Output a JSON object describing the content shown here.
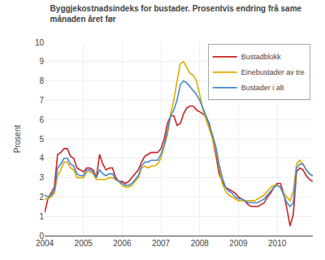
{
  "chart_data": {
    "type": "line",
    "title": "Byggjekostnadsindeks for bustader. Prosentvis endring frå same\nmånaden året før",
    "y_label": "Prosent",
    "x": [
      2004.0,
      2004.0833333333333,
      2004.1666666666667,
      2004.25,
      2004.3333333333333,
      2004.4166666666667,
      2004.5,
      2004.5833333333333,
      2004.6666666666667,
      2004.75,
      2004.8333333333333,
      2004.9166666666667,
      2005.0,
      2005.0833333333333,
      2005.1666666666667,
      2005.25,
      2005.3333333333333,
      2005.4166666666667,
      2005.5,
      2005.5833333333333,
      2005.6666666666667,
      2005.75,
      2005.8333333333333,
      2005.9166666666667,
      2006.0,
      2006.0833333333333,
      2006.1666666666667,
      2006.25,
      2006.3333333333333,
      2006.4166666666667,
      2006.5,
      2006.5833333333333,
      2006.6666666666667,
      2006.75,
      2006.8333333333333,
      2006.9166666666667,
      2007.0,
      2007.0833333333333,
      2007.1666666666667,
      2007.25,
      2007.3333333333333,
      2007.4166666666667,
      2007.5,
      2007.5833333333333,
      2007.6666666666667,
      2007.75,
      2007.8333333333333,
      2007.9166666666667,
      2008.0,
      2008.0833333333333,
      2008.1666666666667,
      2008.25,
      2008.3333333333333,
      2008.4166666666667,
      2008.5,
      2008.5833333333333,
      2008.6666666666667,
      2008.75,
      2008.8333333333333,
      2008.9166666666667,
      2009.0,
      2009.0833333333333,
      2009.1666666666667,
      2009.25,
      2009.3333333333333,
      2009.4166666666667,
      2009.5,
      2009.5833333333333,
      2009.6666666666667,
      2009.75,
      2009.8333333333333,
      2009.9166666666667,
      2010.0,
      2010.0833333333333,
      2010.1666666666667,
      2010.25,
      2010.3333333333333,
      2010.4166666666667,
      2010.5,
      2010.5833333333333,
      2010.6666666666667,
      2010.75,
      2010.8333333333333,
      2010.9166666666667
    ],
    "series": [
      {
        "name": "Bustadblokk",
        "color": "#cc2222",
        "values": [
          1.2,
          1.9,
          2.2,
          2.5,
          4.2,
          4.3,
          4.5,
          4.5,
          4.1,
          4.0,
          3.5,
          3.4,
          3.3,
          3.5,
          3.5,
          3.4,
          3.0,
          4.2,
          3.7,
          3.4,
          3.5,
          3.5,
          3.0,
          2.8,
          2.8,
          2.7,
          2.8,
          3.0,
          3.2,
          3.4,
          3.8,
          4.1,
          4.2,
          4.3,
          4.3,
          4.3,
          4.5,
          5.0,
          5.8,
          6.2,
          6.2,
          5.7,
          5.8,
          6.3,
          6.6,
          6.7,
          6.7,
          6.5,
          6.4,
          6.3,
          6.1,
          5.8,
          5.0,
          4.2,
          3.2,
          2.8,
          2.5,
          2.4,
          2.3,
          2.2,
          2.0,
          1.9,
          1.8,
          1.6,
          1.5,
          1.5,
          1.5,
          1.6,
          1.7,
          2.0,
          2.2,
          2.5,
          2.7,
          2.7,
          2.2,
          1.4,
          0.5,
          1.1,
          3.3,
          3.5,
          3.4,
          3.1,
          2.9,
          2.8
        ]
      },
      {
        "name": "Einebustader av tre",
        "color": "#ddaa00",
        "values": [
          1.9,
          1.9,
          2.0,
          2.2,
          3.1,
          3.4,
          3.8,
          3.8,
          3.5,
          3.4,
          3.0,
          3.0,
          3.0,
          3.3,
          3.3,
          3.2,
          2.9,
          2.9,
          2.9,
          2.9,
          3.0,
          3.0,
          2.9,
          2.8,
          2.6,
          2.5,
          2.5,
          2.6,
          2.8,
          3.0,
          3.5,
          3.6,
          3.5,
          3.6,
          3.6,
          3.7,
          4.0,
          4.6,
          5.2,
          6.3,
          7.0,
          8.0,
          8.9,
          9.0,
          8.7,
          8.4,
          8.3,
          8.0,
          7.3,
          6.5,
          6.0,
          5.5,
          5.0,
          4.4,
          3.5,
          2.7,
          2.3,
          2.1,
          2.0,
          1.9,
          1.8,
          1.8,
          1.8,
          1.8,
          1.8,
          1.8,
          1.9,
          2.0,
          2.1,
          2.3,
          2.5,
          2.6,
          2.6,
          2.5,
          2.2,
          2.0,
          1.8,
          2.3,
          3.7,
          3.9,
          3.7,
          3.4,
          3.2,
          3.1
        ]
      },
      {
        "name": "Bustader i alt",
        "color": "#4488cc",
        "values": [
          2.1,
          2.0,
          2.1,
          2.3,
          3.5,
          3.7,
          4.0,
          4.0,
          3.7,
          3.6,
          3.2,
          3.1,
          3.1,
          3.4,
          3.4,
          3.3,
          3.0,
          3.4,
          3.2,
          3.1,
          3.2,
          3.2,
          2.9,
          2.8,
          2.7,
          2.6,
          2.6,
          2.7,
          2.9,
          3.1,
          3.6,
          3.8,
          3.8,
          3.9,
          3.9,
          3.9,
          4.2,
          4.7,
          5.4,
          6.2,
          6.5,
          7.0,
          7.8,
          8.0,
          7.9,
          7.7,
          7.5,
          7.3,
          7.0,
          6.6,
          6.2,
          5.7,
          5.2,
          4.6,
          3.7,
          3.0,
          2.5,
          2.3,
          2.2,
          2.0,
          1.9,
          1.9,
          1.8,
          1.7,
          1.7,
          1.7,
          1.7,
          1.8,
          1.9,
          2.1,
          2.3,
          2.5,
          2.6,
          2.5,
          2.1,
          1.7,
          1.5,
          1.7,
          3.5,
          3.7,
          3.7,
          3.4,
          3.2,
          3.1
        ]
      }
    ],
    "xlim": [
      2004.0,
      2010.92
    ],
    "xticks": [
      2004,
      2005,
      2006,
      2007,
      2008,
      2009,
      2010
    ],
    "ylim": [
      0,
      10
    ],
    "yticks": [
      0,
      1,
      2,
      3,
      4,
      5,
      6,
      7,
      8,
      9,
      10
    ],
    "grid": true,
    "legend": "upper right"
  }
}
